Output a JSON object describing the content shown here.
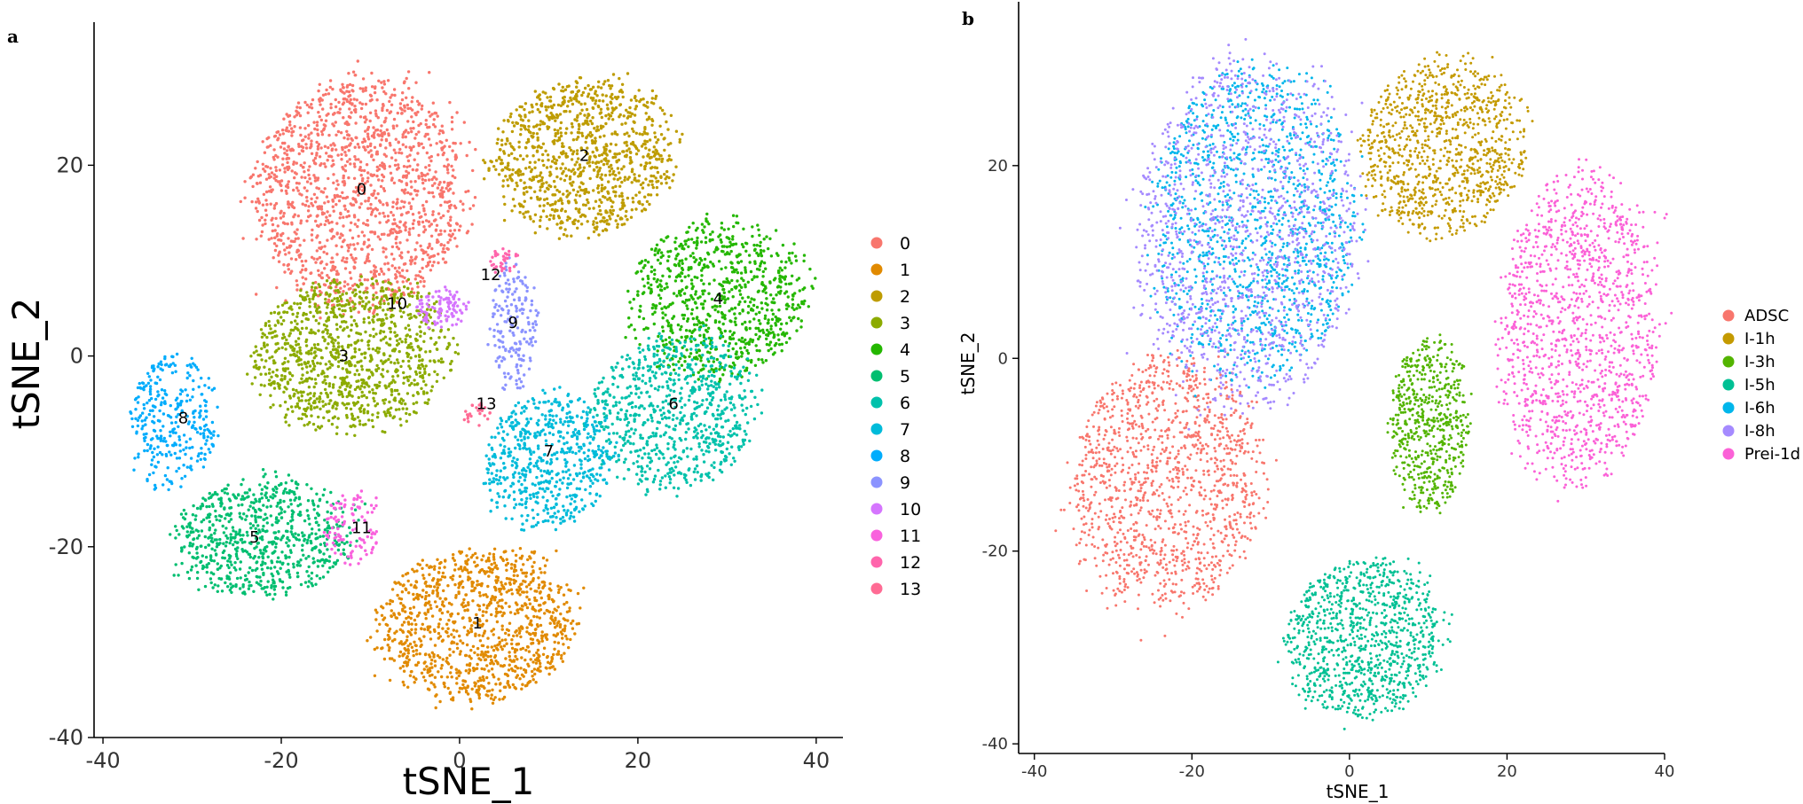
{
  "panels": {
    "a": "a",
    "b": "b"
  },
  "chart_data": [
    {
      "type": "scatter",
      "panel": "a",
      "title": "",
      "xlabel": "tSNE_1",
      "ylabel": "tSNE_2",
      "xlim": [
        -41,
        43
      ],
      "ylim": [
        -40,
        35
      ],
      "xticks": [
        -40,
        -20,
        0,
        20,
        40
      ],
      "yticks": [
        -40,
        -20,
        0,
        20
      ],
      "grid": false,
      "legend_position": "right",
      "legend": [
        "0",
        "1",
        "2",
        "3",
        "4",
        "5",
        "6",
        "7",
        "8",
        "9",
        "10",
        "11",
        "12",
        "13"
      ],
      "colors": [
        "#F8766D",
        "#E18A00",
        "#BE9C00",
        "#8CAB00",
        "#24B700",
        "#00BE70",
        "#00C1AB",
        "#00BBDA",
        "#00ACFC",
        "#8B93FF",
        "#D575FE",
        "#F962DD",
        "#FF65AC",
        "#FF6B94"
      ],
      "clusters": [
        {
          "label": "0",
          "center": [
            -11,
            17
          ],
          "spread": [
            12,
            12
          ],
          "n": 1500
        },
        {
          "label": "1",
          "center": [
            2,
            -28
          ],
          "spread": [
            11,
            8
          ],
          "n": 1100
        },
        {
          "label": "2",
          "center": [
            14,
            21
          ],
          "spread": [
            10,
            8
          ],
          "n": 1000
        },
        {
          "label": "3",
          "center": [
            -12,
            0
          ],
          "spread": [
            11,
            8
          ],
          "n": 1100
        },
        {
          "label": "4",
          "center": [
            29,
            6
          ],
          "spread": [
            10,
            8
          ],
          "n": 850
        },
        {
          "label": "5",
          "center": [
            -22,
            -19
          ],
          "spread": [
            10,
            6
          ],
          "n": 750
        },
        {
          "label": "6",
          "center": [
            24,
            -6
          ],
          "spread": [
            9,
            8
          ],
          "n": 750
        },
        {
          "label": "7",
          "center": [
            10,
            -11
          ],
          "spread": [
            7,
            7
          ],
          "n": 600
        },
        {
          "label": "8",
          "center": [
            -32,
            -7
          ],
          "spread": [
            5,
            7
          ],
          "n": 320
        },
        {
          "label": "9",
          "center": [
            6,
            3
          ],
          "spread": [
            2.5,
            7
          ],
          "n": 180
        },
        {
          "label": "10",
          "center": [
            -2,
            5
          ],
          "spread": [
            3,
            2
          ],
          "n": 100
        },
        {
          "label": "11",
          "center": [
            -12,
            -18
          ],
          "spread": [
            3,
            4
          ],
          "n": 110
        },
        {
          "label": "12",
          "center": [
            5,
            10
          ],
          "spread": [
            1.5,
            1.5
          ],
          "n": 35
        },
        {
          "label": "13",
          "center": [
            2,
            -6
          ],
          "spread": [
            1.5,
            1.2
          ],
          "n": 25
        }
      ],
      "label_positions": [
        {
          "text": "0",
          "x": -11,
          "y": 17.5
        },
        {
          "text": "1",
          "x": 2,
          "y": -28
        },
        {
          "text": "2",
          "x": 14,
          "y": 21
        },
        {
          "text": "3",
          "x": -13,
          "y": 0
        },
        {
          "text": "4",
          "x": 29,
          "y": 6
        },
        {
          "text": "5",
          "x": -23,
          "y": -19
        },
        {
          "text": "6",
          "x": 24,
          "y": -5
        },
        {
          "text": "7",
          "x": 10,
          "y": -10
        },
        {
          "text": "8",
          "x": -31,
          "y": -6.5
        },
        {
          "text": "9",
          "x": 6,
          "y": 3.5
        },
        {
          "text": "10",
          "x": -7,
          "y": 5.5
        },
        {
          "text": "11",
          "x": -11,
          "y": -18
        },
        {
          "text": "12",
          "x": 3.5,
          "y": 8.5
        },
        {
          "text": "13",
          "x": 3,
          "y": -5
        }
      ]
    },
    {
      "type": "scatter",
      "panel": "b",
      "title": "",
      "xlabel": "tSNE_1",
      "ylabel": "tSNE_2",
      "xlim": [
        -42,
        40
      ],
      "ylim": [
        -41,
        37
      ],
      "xticks": [
        -40,
        -20,
        0,
        20,
        40
      ],
      "yticks": [
        -40,
        -20,
        0,
        20
      ],
      "grid": false,
      "legend_position": "right",
      "legend": [
        "ADSC",
        "I-1h",
        "I-3h",
        "I-5h",
        "I-6h",
        "I-8h",
        "Prei-1d"
      ],
      "colors": [
        "#F8766D",
        "#C49A00",
        "#53B400",
        "#00C094",
        "#00B6EB",
        "#A58AFF",
        "#FB61D7"
      ],
      "clusters": [
        {
          "label": "ADSC",
          "center": [
            -23,
            -13
          ],
          "spread": [
            12,
            13
          ],
          "n": 1300
        },
        {
          "label": "I-1h",
          "center": [
            12,
            22
          ],
          "spread": [
            10,
            9
          ],
          "n": 1000
        },
        {
          "label": "I-3h",
          "center": [
            10,
            -7
          ],
          "spread": [
            5,
            9
          ],
          "n": 600
        },
        {
          "label": "I-5h",
          "center": [
            2,
            -29
          ],
          "spread": [
            10,
            8
          ],
          "n": 1000
        },
        {
          "label": "I-6h",
          "center": [
            -12,
            14
          ],
          "spread": [
            13,
            16
          ],
          "n": 1300
        },
        {
          "label": "I-8h",
          "center": [
            -13,
            13
          ],
          "spread": [
            14,
            18
          ],
          "n": 1300
        },
        {
          "label": "Prei-1d",
          "center": [
            29,
            3
          ],
          "spread": [
            10,
            16
          ],
          "n": 1300
        }
      ]
    }
  ]
}
